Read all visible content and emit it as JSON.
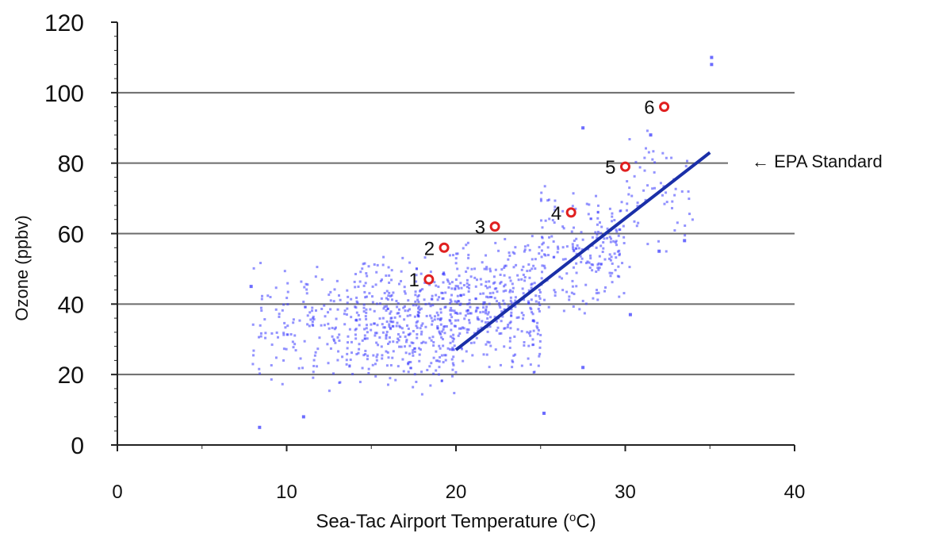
{
  "chart_data": {
    "type": "scatter",
    "title": "",
    "xlabel": "Sea-Tac Airport Temperature (",
    "xlabel_sup": "o",
    "xlabel_tail": "C)",
    "ylabel": "Ozone (ppbv)",
    "xlim": [
      0,
      40
    ],
    "ylim": [
      0,
      120
    ],
    "x_ticks": [
      0,
      10,
      20,
      30,
      40
    ],
    "y_ticks": [
      0,
      20,
      40,
      60,
      80,
      100,
      120
    ],
    "grid": "horizontal",
    "reference_line": {
      "y": 80,
      "label": "← EPA Standard"
    },
    "colors": {
      "scatter": "#3b3bff",
      "trend": "#1a2fa8",
      "marker": "#e02020",
      "gridline": "#6b6b6b",
      "axis": "#222222",
      "text": "#111111"
    },
    "trend_line": {
      "x": [
        20,
        35
      ],
      "y": [
        27,
        83
      ]
    },
    "numbered_points": [
      {
        "label": "1",
        "x": 18.4,
        "y": 47
      },
      {
        "label": "2",
        "x": 19.3,
        "y": 56
      },
      {
        "label": "3",
        "x": 22.3,
        "y": 62
      },
      {
        "label": "4",
        "x": 26.8,
        "y": 66
      },
      {
        "label": "5",
        "x": 30.0,
        "y": 79
      },
      {
        "label": "6",
        "x": 32.3,
        "y": 96
      }
    ],
    "scatter_groups": [
      {
        "x": [
          8,
          14
        ],
        "y": [
          15,
          52
        ],
        "n": 160
      },
      {
        "x": [
          14,
          20
        ],
        "y": [
          14,
          55
        ],
        "n": 420
      },
      {
        "x": [
          20,
          25
        ],
        "y": [
          20,
          60
        ],
        "n": 320
      },
      {
        "x": [
          25,
          30
        ],
        "y": [
          35,
          75
        ],
        "n": 200
      },
      {
        "x": [
          30,
          34
        ],
        "y": [
          48,
          90
        ],
        "n": 60
      }
    ],
    "scatter_extra": [
      {
        "x": 8.4,
        "y": 5
      },
      {
        "x": 7.9,
        "y": 45
      },
      {
        "x": 35.1,
        "y": 108
      },
      {
        "x": 35.1,
        "y": 110
      },
      {
        "x": 27.5,
        "y": 90
      },
      {
        "x": 30.3,
        "y": 37
      },
      {
        "x": 27.5,
        "y": 22
      },
      {
        "x": 25.2,
        "y": 9
      },
      {
        "x": 11.0,
        "y": 8
      },
      {
        "x": 33.5,
        "y": 58
      },
      {
        "x": 32.0,
        "y": 55
      },
      {
        "x": 31.5,
        "y": 88
      }
    ]
  }
}
